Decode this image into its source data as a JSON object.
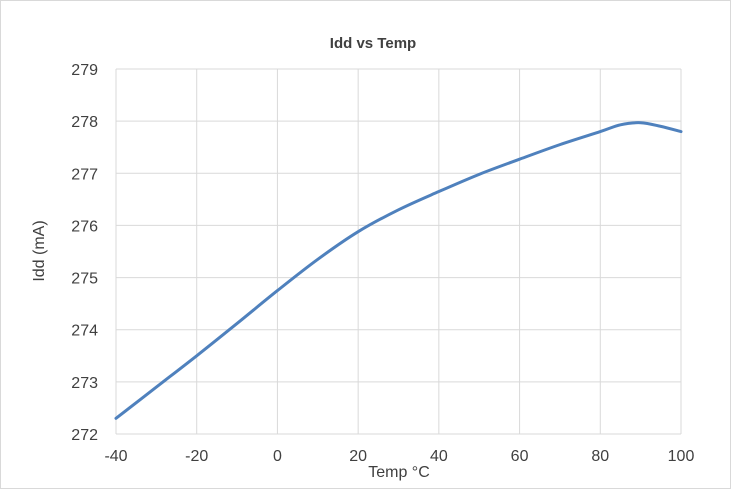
{
  "chart_data": {
    "type": "line",
    "title": "Idd vs Temp",
    "xlabel": "Temp °C",
    "ylabel": "Idd (mA)",
    "xlim": [
      -40,
      100
    ],
    "ylim": [
      272,
      279
    ],
    "xticks": [
      "-40",
      "-20",
      "0",
      "20",
      "40",
      "60",
      "80",
      "100"
    ],
    "yticks": [
      "272",
      "273",
      "274",
      "275",
      "276",
      "277",
      "278",
      "279"
    ],
    "grid": true,
    "legend": "none",
    "series": [
      {
        "color": "#4f81bd",
        "x": [
          -40,
          -30,
          -20,
          -10,
          0,
          10,
          20,
          30,
          40,
          50,
          60,
          70,
          80,
          85,
          90,
          95,
          100
        ],
        "y": [
          272.3,
          272.9,
          273.5,
          274.12,
          274.75,
          275.35,
          275.88,
          276.3,
          276.65,
          276.98,
          277.27,
          277.55,
          277.8,
          277.93,
          277.97,
          277.9,
          277.8
        ]
      }
    ]
  }
}
